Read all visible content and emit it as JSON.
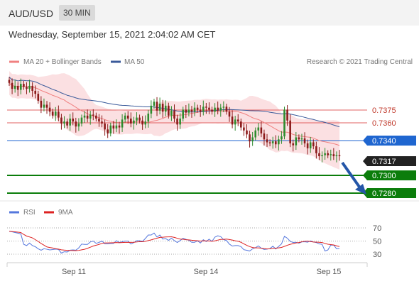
{
  "header": {
    "pair": "AUD/USD",
    "timeframe": "30 MIN"
  },
  "datetime": "Wednesday, September 15, 2021 2:04:02 AM CET",
  "legend": {
    "ma_boll": "MA 20 + Bollinger Bands",
    "ma50": "MA 50",
    "credit": "Research © 2021 Trading Central"
  },
  "rsi_legend": {
    "rsi": "RSI",
    "ma9": "9MA"
  },
  "colors": {
    "ma20": "#f08080",
    "band": "#fadadd",
    "ma50": "#3a5a9a",
    "up": "#2e8b2e",
    "down": "#8b1a1a",
    "support": "#0b7d0b",
    "resist": "#e06060",
    "pivot": "#1f66d0",
    "arrow": "#2456a8",
    "rsi": "#5577dd",
    "ma9": "#dd2222"
  },
  "chart_data": {
    "type": "candlestick",
    "x_labels": [
      "Sep 11",
      "Sep 14",
      "Sep 15"
    ],
    "ylim": [
      0.7274,
      0.7398
    ],
    "levels": [
      {
        "value": 0.7375,
        "label": "0.7375",
        "kind": "resistance"
      },
      {
        "value": 0.736,
        "label": "0.7360",
        "kind": "resistance"
      },
      {
        "value": 0.734,
        "label": "0.7340",
        "kind": "pivot"
      },
      {
        "value": 0.7317,
        "label": "0.7317",
        "kind": "last"
      },
      {
        "value": 0.73,
        "label": "0.7300",
        "kind": "support"
      },
      {
        "value": 0.728,
        "label": "0.7280",
        "kind": "support"
      }
    ],
    "close": [
      0.7391,
      0.7385,
      0.7388,
      0.7384,
      0.739,
      0.7387,
      0.7385,
      0.7388,
      0.7383,
      0.738,
      0.7373,
      0.7366,
      0.7369,
      0.7366,
      0.7362,
      0.7358,
      0.7362,
      0.7356,
      0.735,
      0.7352,
      0.7348,
      0.7355,
      0.7352,
      0.7347,
      0.735,
      0.7356,
      0.7358,
      0.7355,
      0.7359,
      0.7358,
      0.7355,
      0.7352,
      0.735,
      0.7344,
      0.734,
      0.7348,
      0.7345,
      0.7348,
      0.7346,
      0.7354,
      0.7358,
      0.7355,
      0.735,
      0.7353,
      0.7356,
      0.7353,
      0.7349,
      0.7352,
      0.736,
      0.7368,
      0.7372,
      0.7363,
      0.737,
      0.7362,
      0.7368,
      0.7358,
      0.7363,
      0.7355,
      0.7349,
      0.7355,
      0.7364,
      0.7361,
      0.7364,
      0.7362,
      0.7366,
      0.7364,
      0.7362,
      0.7367,
      0.7366,
      0.7364,
      0.7362,
      0.7366,
      0.7363,
      0.7366,
      0.7367,
      0.7362,
      0.7357,
      0.7349,
      0.7354,
      0.7352,
      0.7346,
      0.7343,
      0.7339,
      0.7332,
      0.7336,
      0.7343,
      0.7346,
      0.734,
      0.7334,
      0.7331,
      0.733,
      0.7332,
      0.7329,
      0.7334,
      0.7337,
      0.7364,
      0.7353,
      0.733,
      0.7328,
      0.7336,
      0.7334,
      0.7335,
      0.733,
      0.7325,
      0.7331,
      0.7327,
      0.732,
      0.7317,
      0.7318,
      0.732,
      0.7318,
      0.7319,
      0.7317,
      0.7318,
      0.7317
    ],
    "rsi": {
      "levels": [
        70,
        50,
        30
      ]
    }
  }
}
